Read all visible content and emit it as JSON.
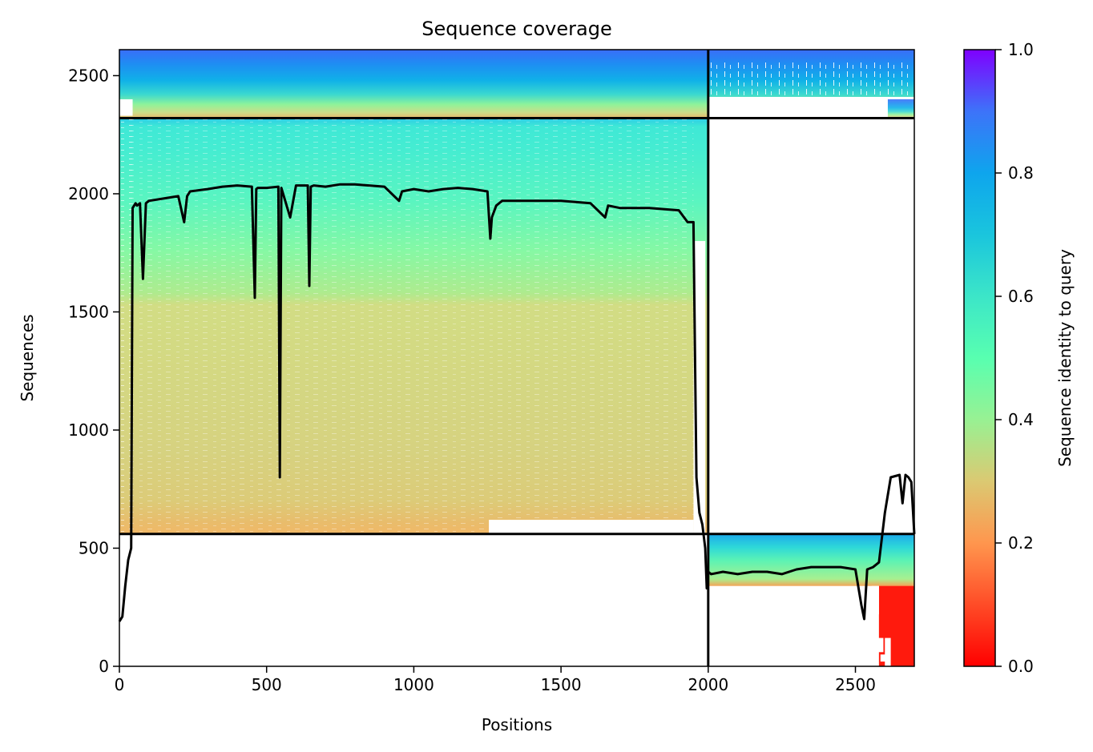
{
  "chart_data": {
    "type": "heatmap",
    "title": "Sequence coverage",
    "xlabel": "Positions",
    "ylabel": "Sequences",
    "colorbar_label": "Sequence identity to query",
    "colormap": "rainbow_r",
    "xlim": [
      0,
      2700
    ],
    "ylim": [
      0,
      2610
    ],
    "clim": [
      0,
      1
    ],
    "x_ticks": [
      0,
      500,
      1000,
      1500,
      2000,
      2500
    ],
    "y_ticks": [
      0,
      500,
      1000,
      1500,
      2000,
      2500
    ],
    "colorbar_ticks": [
      0.0,
      0.2,
      0.4,
      0.6,
      0.8,
      1.0
    ],
    "x_tick_labels": [
      "0",
      "500",
      "1000",
      "1500",
      "2000",
      "2500"
    ],
    "y_tick_labels": [
      "0",
      "500",
      "1000",
      "1500",
      "2000",
      "2500"
    ],
    "colorbar_tick_labels": [
      "0.0",
      "0.2",
      "0.4",
      "0.6",
      "0.8",
      "1.0"
    ],
    "chain_boundary_x": 2000,
    "block_boundaries_y": [
      560,
      2320
    ],
    "blocks": [
      {
        "name": "paired",
        "x": [
          0,
          2700
        ],
        "y": [
          2320,
          2610
        ],
        "identity_bottom": 0.28,
        "identity_top": 0.95
      },
      {
        "name": "chain-A-unpaired",
        "x": [
          0,
          2000
        ],
        "y": [
          560,
          2320
        ],
        "identity_bottom": 0.22,
        "identity_top": 0.72
      },
      {
        "name": "chain-B-unpaired",
        "x": [
          2000,
          2700
        ],
        "y": [
          0,
          560
        ],
        "identity_bottom": 0.02,
        "identity_top": 0.85
      }
    ],
    "coverage_line": {
      "color": "#000000",
      "x": [
        0,
        10,
        20,
        30,
        40,
        45,
        50,
        55,
        60,
        70,
        80,
        90,
        100,
        150,
        200,
        220,
        230,
        240,
        300,
        350,
        400,
        450,
        460,
        465,
        470,
        500,
        540,
        545,
        550,
        580,
        600,
        640,
        645,
        650,
        660,
        700,
        750,
        800,
        900,
        950,
        960,
        1000,
        1050,
        1100,
        1150,
        1200,
        1250,
        1260,
        1265,
        1280,
        1300,
        1400,
        1500,
        1600,
        1650,
        1660,
        1680,
        1700,
        1800,
        1900,
        1930,
        1950,
        1960,
        1970,
        1980,
        1990,
        1995,
        2000,
        2010,
        2050,
        2100,
        2150,
        2200,
        2250,
        2300,
        2350,
        2400,
        2450,
        2500,
        2520,
        2530,
        2540,
        2560,
        2580,
        2600,
        2620,
        2650,
        2660,
        2670,
        2680,
        2690,
        2700
      ],
      "y": [
        190,
        210,
        340,
        450,
        500,
        1940,
        1950,
        1960,
        1950,
        1960,
        1640,
        1960,
        1970,
        1980,
        1990,
        1880,
        1990,
        2010,
        2020,
        2030,
        2035,
        2030,
        1560,
        2020,
        2025,
        2025,
        2030,
        800,
        2025,
        1900,
        2035,
        2035,
        1610,
        2030,
        2035,
        2030,
        2040,
        2040,
        2030,
        1970,
        2010,
        2020,
        2010,
        2020,
        2025,
        2020,
        2010,
        1810,
        1900,
        1950,
        1970,
        1970,
        1970,
        1960,
        1900,
        1950,
        1945,
        1940,
        1940,
        1930,
        1880,
        1880,
        800,
        650,
        600,
        500,
        330,
        400,
        390,
        400,
        390,
        400,
        400,
        390,
        410,
        420,
        420,
        420,
        410,
        260,
        200,
        410,
        420,
        440,
        650,
        800,
        810,
        690,
        810,
        800,
        780,
        560
      ]
    }
  }
}
